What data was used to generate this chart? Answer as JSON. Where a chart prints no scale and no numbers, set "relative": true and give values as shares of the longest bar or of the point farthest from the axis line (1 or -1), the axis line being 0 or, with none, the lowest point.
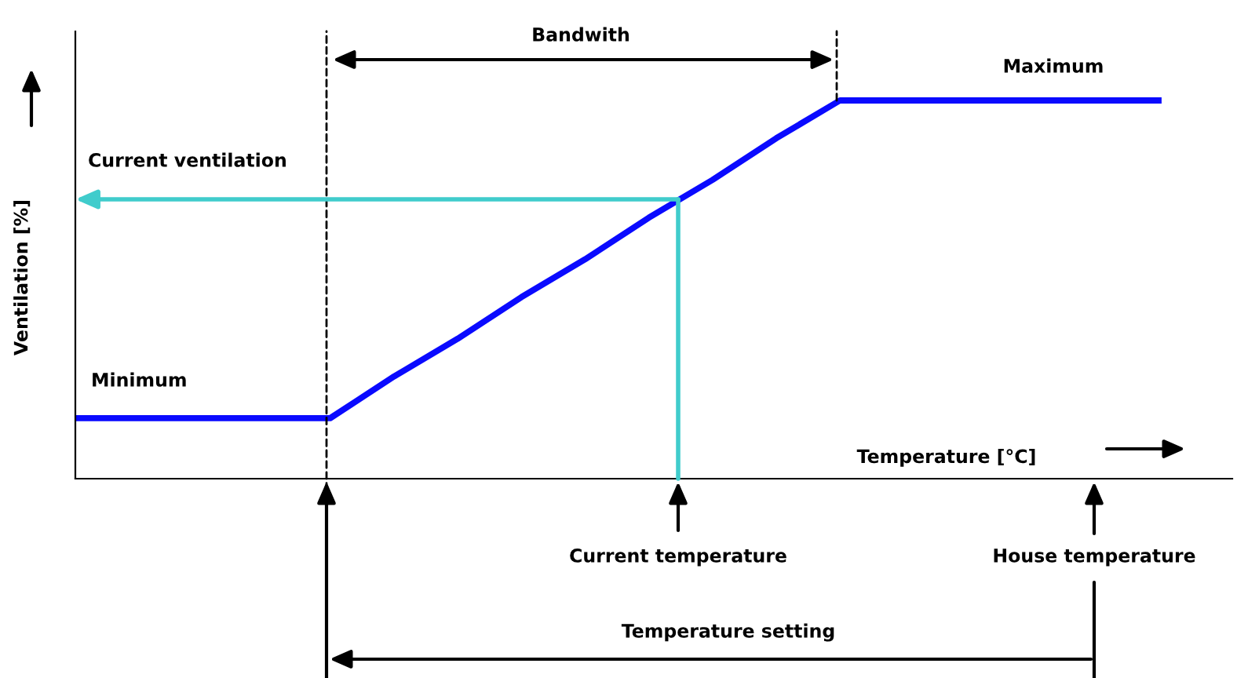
{
  "chart_data": {
    "type": "line",
    "relative": true,
    "categories": [
      null,
      null,
      null,
      null,
      null,
      null,
      null,
      null,
      null,
      null,
      null,
      null,
      null,
      null,
      null,
      null,
      null,
      null
    ],
    "series": [
      {
        "color": "#0a0aff",
        "values": [
          0.16,
          0.16,
          0.16,
          0.16,
          0.16,
          0.27,
          0.37,
          0.48,
          0.58,
          0.69,
          0.79,
          0.9,
          1,
          1,
          1,
          1,
          1,
          1
        ]
      }
    ],
    "xlabel": "Temperature [°C]",
    "ylabel": "Ventilation [%]",
    "annotations": [
      "Minimum",
      "Maximum",
      "Current ventilation",
      "Bandwith",
      "Current temperature",
      "House temperature",
      "Temperature setting"
    ],
    "marker": "none",
    "line_style": "solid",
    "tick_labels": false
  }
}
